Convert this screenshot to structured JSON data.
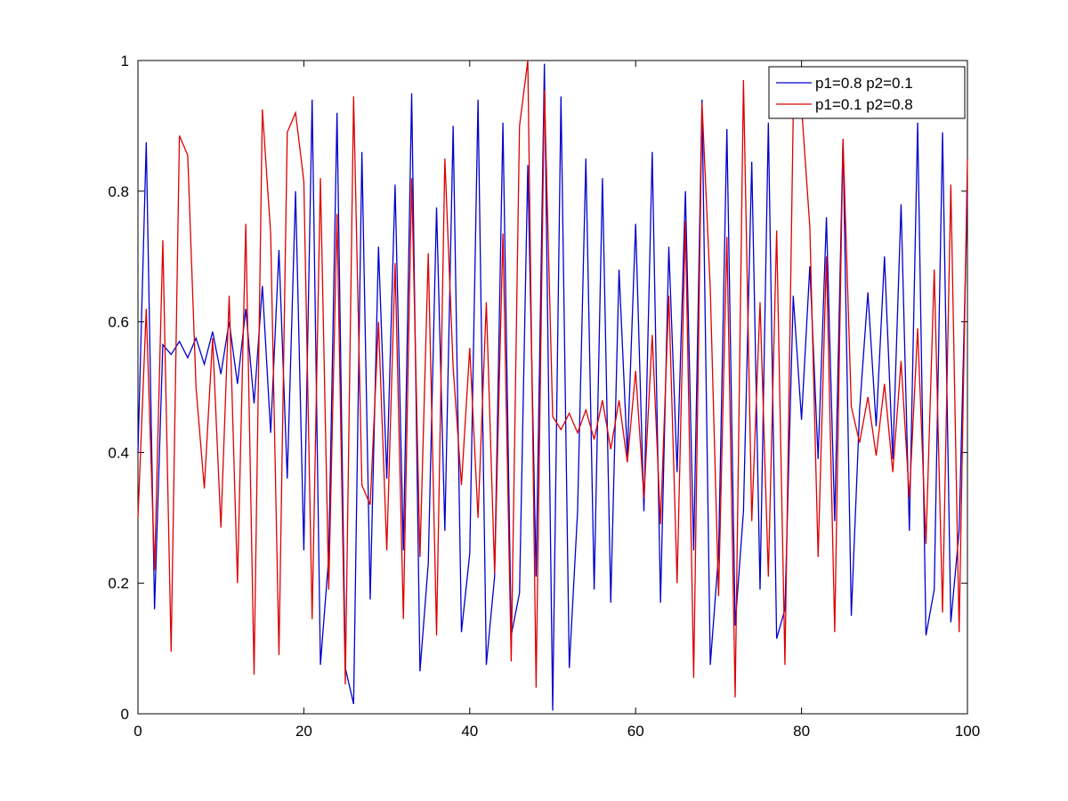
{
  "chart_data": {
    "type": "line",
    "title": "",
    "xlabel": "",
    "ylabel": "",
    "xlim": [
      0,
      100
    ],
    "ylim": [
      0,
      1
    ],
    "xticks": [
      0,
      20,
      40,
      60,
      80,
      100
    ],
    "xtick_labels": [
      "0",
      "20",
      "40",
      "60",
      "80",
      "100"
    ],
    "yticks": [
      0,
      0.2,
      0.4,
      0.6,
      0.8,
      1
    ],
    "ytick_labels": [
      "0",
      "0.2",
      "0.4",
      "0.6",
      "0.8",
      "1"
    ],
    "grid": false,
    "legend_position": "top-right",
    "series": [
      {
        "name": "p1=0.8 p2=0.1",
        "color": "#0000cc",
        "x": [
          0,
          1,
          2,
          3,
          4,
          5,
          6,
          7,
          8,
          9,
          10,
          11,
          12,
          13,
          14,
          15,
          16,
          17,
          18,
          19,
          20,
          21,
          22,
          23,
          24,
          25,
          26,
          27,
          28,
          29,
          30,
          31,
          32,
          33,
          34,
          35,
          36,
          37,
          38,
          39,
          40,
          41,
          42,
          43,
          44,
          45,
          46,
          47,
          48,
          49,
          50,
          51,
          52,
          53,
          54,
          55,
          56,
          57,
          58,
          59,
          60,
          61,
          62,
          63,
          64,
          65,
          66,
          67,
          68,
          69,
          70,
          71,
          72,
          73,
          74,
          75,
          76,
          77,
          78,
          79,
          80,
          81,
          82,
          83,
          84,
          85,
          86,
          87,
          88,
          89,
          90,
          91,
          92,
          93,
          94,
          95,
          96,
          97,
          98,
          99,
          100
        ],
        "y": [
          0.4,
          0.875,
          0.16,
          0.565,
          0.55,
          0.57,
          0.545,
          0.575,
          0.535,
          0.585,
          0.52,
          0.6,
          0.505,
          0.62,
          0.475,
          0.655,
          0.43,
          0.71,
          0.36,
          0.8,
          0.25,
          0.94,
          0.075,
          0.24,
          0.92,
          0.07,
          0.015,
          0.86,
          0.175,
          0.715,
          0.36,
          0.81,
          0.25,
          0.95,
          0.065,
          0.23,
          0.775,
          0.28,
          0.9,
          0.125,
          0.245,
          0.94,
          0.075,
          0.21,
          0.905,
          0.12,
          0.185,
          0.84,
          0.21,
          0.995,
          0.005,
          0.945,
          0.07,
          0.31,
          0.85,
          0.19,
          0.82,
          0.17,
          0.68,
          0.395,
          0.75,
          0.31,
          0.86,
          0.17,
          0.715,
          0.37,
          0.8,
          0.25,
          0.94,
          0.075,
          0.245,
          0.895,
          0.135,
          0.31,
          0.845,
          0.19,
          0.905,
          0.115,
          0.16,
          0.64,
          0.45,
          0.685,
          0.39,
          0.76,
          0.295,
          0.88,
          0.15,
          0.465,
          0.645,
          0.44,
          0.7,
          0.39,
          0.78,
          0.28,
          0.905,
          0.12,
          0.19,
          0.89,
          0.14,
          0.28,
          0.8
        ]
      },
      {
        "name": "p1=0.1 p2=0.8",
        "color": "#dd0000",
        "x": [
          0,
          1,
          2,
          3,
          4,
          5,
          6,
          7,
          8,
          9,
          10,
          11,
          12,
          13,
          14,
          15,
          16,
          17,
          18,
          19,
          20,
          21,
          22,
          23,
          24,
          25,
          26,
          27,
          28,
          29,
          30,
          31,
          32,
          33,
          34,
          35,
          36,
          37,
          38,
          39,
          40,
          41,
          42,
          43,
          44,
          45,
          46,
          47,
          48,
          49,
          50,
          51,
          52,
          53,
          54,
          55,
          56,
          57,
          58,
          59,
          60,
          61,
          62,
          63,
          64,
          65,
          66,
          67,
          68,
          69,
          70,
          71,
          72,
          73,
          74,
          75,
          76,
          77,
          78,
          79,
          80,
          81,
          82,
          83,
          84,
          85,
          86,
          87,
          88,
          89,
          90,
          91,
          92,
          93,
          94,
          95,
          96,
          97,
          98,
          99,
          100
        ],
        "y": [
          0.3,
          0.62,
          0.22,
          0.725,
          0.095,
          0.885,
          0.855,
          0.5,
          0.345,
          0.575,
          0.285,
          0.64,
          0.2,
          0.75,
          0.06,
          0.925,
          0.735,
          0.09,
          0.89,
          0.92,
          0.815,
          0.145,
          0.82,
          0.19,
          0.765,
          0.045,
          0.945,
          0.35,
          0.32,
          0.6,
          0.25,
          0.69,
          0.145,
          0.82,
          0.24,
          0.705,
          0.12,
          0.85,
          0.53,
          0.35,
          0.56,
          0.3,
          0.63,
          0.215,
          0.735,
          0.08,
          0.9,
          1.0,
          0.04,
          0.955,
          0.455,
          0.435,
          0.46,
          0.43,
          0.465,
          0.42,
          0.48,
          0.405,
          0.48,
          0.385,
          0.525,
          0.33,
          0.58,
          0.29,
          0.64,
          0.2,
          0.755,
          0.055,
          0.935,
          0.65,
          0.18,
          0.73,
          0.025,
          0.97,
          0.295,
          0.63,
          0.21,
          0.74,
          0.075,
          0.92,
          0.93,
          0.745,
          0.24,
          0.7,
          0.125,
          0.88,
          0.47,
          0.415,
          0.485,
          0.395,
          0.505,
          0.37,
          0.54,
          0.33,
          0.59,
          0.26,
          0.68,
          0.155,
          0.81,
          0.125,
          0.85
        ]
      }
    ]
  }
}
